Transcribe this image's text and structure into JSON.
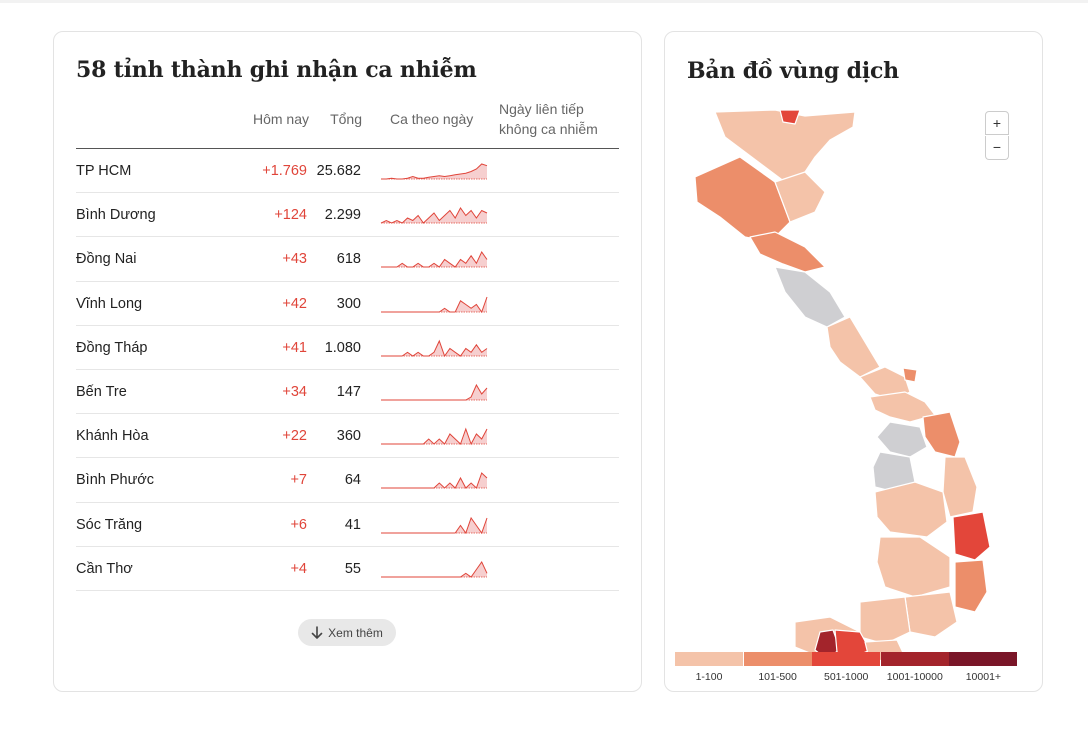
{
  "left_card": {
    "title": "58 tỉnh thành ghi nhận ca nhiễm",
    "columns": {
      "today": "Hôm nay",
      "total": "Tổng",
      "trend": "Ca theo ngày",
      "no_case_days_line1": "Ngày liên tiếp",
      "no_case_days_line2": "không ca nhiễm"
    },
    "rows": [
      {
        "name": "TP HCM",
        "today": "+1.769",
        "total": "25.682",
        "trend": [
          0,
          0,
          1,
          0,
          0,
          1,
          3,
          1,
          1,
          2,
          3,
          4,
          3,
          4,
          5,
          6,
          7,
          9,
          12,
          18,
          16
        ]
      },
      {
        "name": "Bình Dương",
        "today": "+124",
        "total": "2.299",
        "trend": [
          0,
          1,
          0,
          1,
          0,
          2,
          1,
          3,
          0,
          2,
          4,
          1,
          3,
          5,
          2,
          6,
          3,
          5,
          2,
          5,
          4
        ]
      },
      {
        "name": "Đồng Nai",
        "today": "+43",
        "total": "618",
        "trend": [
          0,
          0,
          0,
          0,
          1,
          0,
          0,
          1,
          0,
          0,
          1,
          0,
          2,
          1,
          0,
          2,
          1,
          3,
          1,
          4,
          2
        ]
      },
      {
        "name": "Vĩnh Long",
        "today": "+42",
        "total": "300",
        "trend": [
          0,
          0,
          0,
          0,
          0,
          0,
          0,
          0,
          0,
          0,
          0,
          0,
          1,
          0,
          0,
          3,
          2,
          1,
          2,
          0,
          4
        ]
      },
      {
        "name": "Đồng Tháp",
        "today": "+41",
        "total": "1.080",
        "trend": [
          0,
          0,
          0,
          0,
          0,
          1,
          0,
          1,
          0,
          0,
          1,
          4,
          0,
          2,
          1,
          0,
          2,
          1,
          3,
          1,
          2
        ]
      },
      {
        "name": "Bến Tre",
        "today": "+34",
        "total": "147",
        "trend": [
          0,
          0,
          0,
          0,
          0,
          0,
          0,
          0,
          0,
          0,
          0,
          0,
          0,
          0,
          0,
          0,
          0,
          1,
          5,
          2,
          4
        ]
      },
      {
        "name": "Khánh Hòa",
        "today": "+22",
        "total": "360",
        "trend": [
          0,
          0,
          0,
          0,
          0,
          0,
          0,
          0,
          0,
          1,
          0,
          1,
          0,
          2,
          1,
          0,
          3,
          0,
          2,
          1,
          3
        ]
      },
      {
        "name": "Bình Phước",
        "today": "+7",
        "total": "64",
        "trend": [
          0,
          0,
          0,
          0,
          0,
          0,
          0,
          0,
          0,
          0,
          0,
          1,
          0,
          1,
          0,
          2,
          0,
          1,
          0,
          3,
          2
        ]
      },
      {
        "name": "Sóc Trăng",
        "today": "+6",
        "total": "41",
        "trend": [
          0,
          0,
          0,
          0,
          0,
          0,
          0,
          0,
          0,
          0,
          0,
          0,
          0,
          0,
          0,
          1,
          0,
          2,
          1,
          0,
          2
        ]
      },
      {
        "name": "Cần Thơ",
        "today": "+4",
        "total": "55",
        "trend": [
          0,
          0,
          0,
          0,
          0,
          0,
          0,
          0,
          0,
          0,
          0,
          0,
          0,
          0,
          0,
          0,
          1,
          0,
          2,
          4,
          1
        ]
      }
    ],
    "more_button": "Xem thêm"
  },
  "right_card": {
    "title": "Bản đồ vùng dịch",
    "zoom_in": "+",
    "zoom_out": "−",
    "legend": [
      {
        "label": "1-100",
        "color": "#f4c3a9"
      },
      {
        "label": "101-500",
        "color": "#ec8e6a"
      },
      {
        "label": "501-1000",
        "color": "#e3463a"
      },
      {
        "label": "1001-10000",
        "color": "#a3242b"
      },
      {
        "label": "10001+",
        "color": "#7a1628"
      }
    ]
  },
  "colors": {
    "increase_red": "#e0453a",
    "spark_line": "#e0453a",
    "spark_fill": "#f6cfcf",
    "no_data_gray": "#cfcfd2"
  }
}
